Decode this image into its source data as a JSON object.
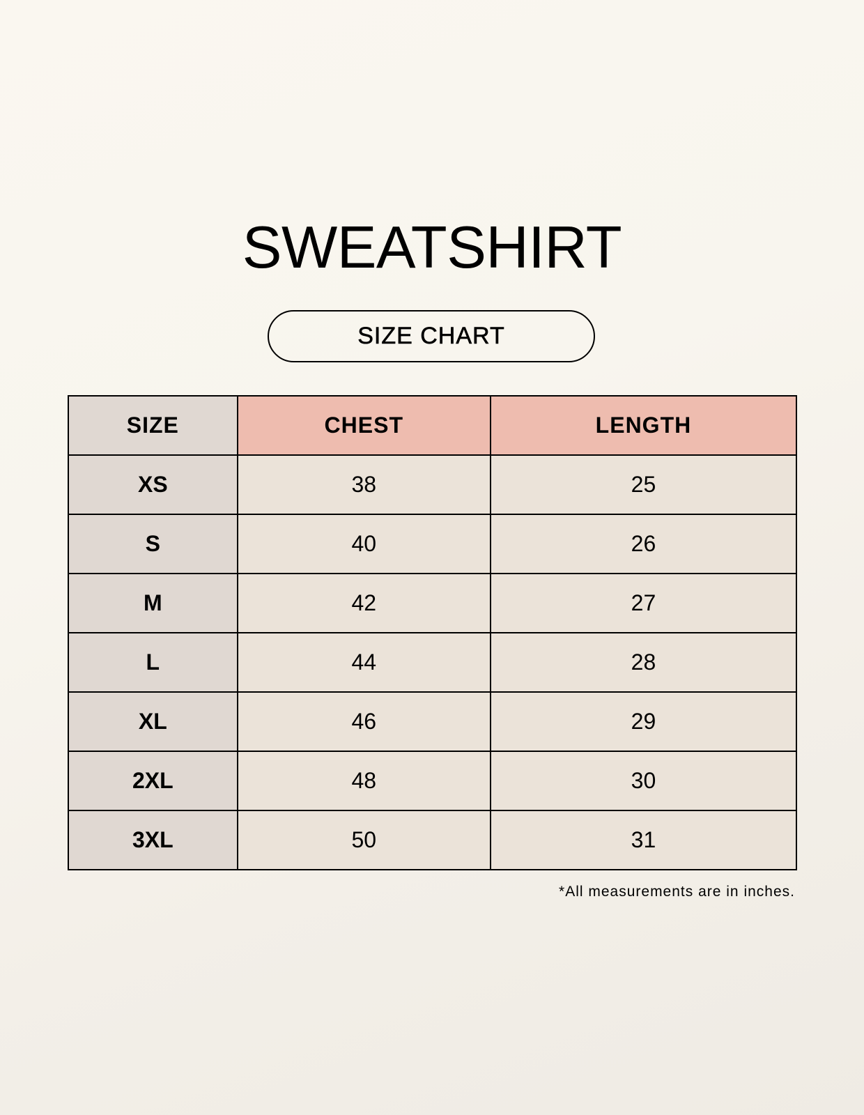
{
  "title": "SWEATSHIRT",
  "subtitle_pill": "SIZE CHART",
  "colors": {
    "size_column": "#e0d8d2",
    "header_highlight": "#eebcaf",
    "value_cells": "#ebe3d9",
    "background": "#f8f5ee"
  },
  "table": {
    "headers": [
      "SIZE",
      "CHEST",
      "LENGTH"
    ],
    "rows": [
      [
        "XS",
        "38",
        "25"
      ],
      [
        "S",
        "40",
        "26"
      ],
      [
        "M",
        "42",
        "27"
      ],
      [
        "L",
        "44",
        "28"
      ],
      [
        "XL",
        "46",
        "29"
      ],
      [
        "2XL",
        "48",
        "30"
      ],
      [
        "3XL",
        "50",
        "31"
      ]
    ]
  },
  "note": "*All measurements are in inches."
}
